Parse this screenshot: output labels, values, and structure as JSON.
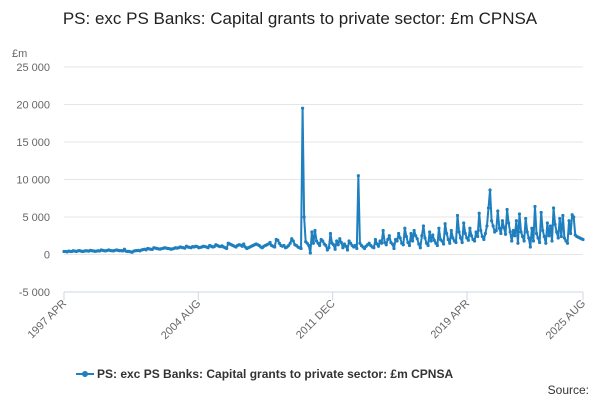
{
  "chart_data": {
    "type": "line",
    "title": "PS: exc PS Banks: Capital grants to private sector: £m CPNSA",
    "ylabel": "£m",
    "xlabel": "",
    "ylim": [
      -5000,
      25000
    ],
    "yticks": [
      "25 000",
      "20 000",
      "15 000",
      "10 000",
      "5 000",
      "0",
      "-5 000"
    ],
    "ytick_values": [
      25000,
      20000,
      15000,
      10000,
      5000,
      0,
      -5000
    ],
    "xticks": [
      "1997 APR",
      "2004 AUG",
      "2011 DEC",
      "2019 APR",
      "2025 AUG"
    ],
    "xtick_months": [
      "1997-04",
      "2004-08",
      "2011-12",
      "2019-04",
      "2025-08"
    ],
    "grid": "horizontal",
    "legend_position": "bottom",
    "source_label": "Source:",
    "color": "#1f7fbf",
    "series": [
      {
        "name": "PS: exc PS Banks: Capital grants to private sector: £m CPNSA",
        "x_start": "1997-04",
        "x_end": "2025-08",
        "values": [
          400,
          400,
          350,
          450,
          420,
          400,
          500,
          450,
          400,
          480,
          520,
          450,
          400,
          450,
          500,
          480,
          450,
          550,
          500,
          480,
          420,
          450,
          500,
          460,
          600,
          550,
          500,
          480,
          550,
          600,
          520,
          500,
          480,
          560,
          600,
          550,
          500,
          520,
          480,
          700,
          450,
          400,
          420,
          350,
          300,
          450,
          500,
          520,
          550,
          480,
          600,
          650,
          700,
          620,
          800,
          750,
          700,
          680,
          900,
          850,
          800,
          750,
          720,
          780,
          820,
          900,
          850,
          800,
          780,
          700,
          750,
          800,
          900,
          850,
          900,
          1000,
          950,
          900,
          850,
          1100,
          1000,
          950,
          900,
          1050,
          1000,
          1100,
          1050,
          900,
          950,
          1000,
          1100,
          1050,
          1000,
          900,
          1200,
          1100,
          1000,
          1050,
          1300,
          1200,
          1100,
          1050,
          1150,
          1000,
          900,
          800,
          1500,
          1400,
          1300,
          1200,
          1100,
          1000,
          1200,
          1300,
          1250,
          1100,
          1400,
          1000,
          800,
          900,
          1000,
          1100,
          1200,
          1300,
          1400,
          1300,
          1200,
          1000,
          900,
          1100,
          1200,
          1300,
          1400,
          1600,
          1200,
          1100,
          1000,
          2000,
          1900,
          1500,
          1200,
          1100,
          1200,
          900,
          1000,
          1200,
          1500,
          2100,
          1800,
          1300,
          1200,
          1000,
          900,
          800,
          19500,
          5000,
          1700,
          1500,
          1200,
          200,
          3000,
          1500,
          3200,
          1800,
          1500,
          1200,
          2000,
          1800,
          1400,
          1200,
          600,
          900,
          2800,
          1500,
          1300,
          700,
          1800,
          1300,
          2100,
          1600,
          900,
          1400,
          1100,
          600,
          1800,
          1500,
          1200,
          1000,
          1200,
          800,
          10500,
          1500,
          1200,
          1000,
          800,
          1100,
          1300,
          1500,
          1200,
          1000,
          900,
          2000,
          1400,
          1100,
          1800,
          1500,
          3200,
          1600,
          1300,
          2000,
          2500,
          1600,
          1400,
          800,
          2000,
          1800,
          2800,
          2200,
          1500,
          1300,
          3500,
          2400,
          1600,
          1200,
          2800,
          1800,
          3200,
          2500,
          2100,
          1400,
          900,
          2500,
          3800,
          2200,
          1500,
          1200,
          3000,
          1800,
          2600,
          1900,
          1500,
          1200,
          3500,
          2000,
          1800,
          1400,
          4100,
          2800,
          2000,
          1500,
          3200,
          2200,
          1800,
          1600,
          5200,
          3000,
          2200,
          1600,
          4200,
          2800,
          2200,
          1900,
          3500,
          2500,
          2000,
          1800,
          3000,
          2400,
          5500,
          3200,
          2400,
          2000,
          2800,
          3800,
          6200,
          8600,
          4500,
          3800,
          3000,
          3200,
          5800,
          3500,
          2800,
          4500,
          3600,
          2700,
          6000,
          4200,
          3000,
          1800,
          3200,
          2500,
          4500,
          1500,
          5400,
          3000,
          2400,
          1800,
          4800,
          3000,
          2200,
          1000,
          3500,
          1800,
          6400,
          2800,
          2200,
          1600,
          5600,
          3200,
          2400,
          1500,
          4200,
          2500,
          3800,
          1800,
          6200,
          4000,
          3000,
          2200,
          4800,
          2400,
          5200,
          2200,
          1800,
          1500,
          4500,
          2800,
          5300,
          5000,
          2600,
          2400,
          2300,
          2200,
          2100,
          2000
        ]
      }
    ]
  }
}
